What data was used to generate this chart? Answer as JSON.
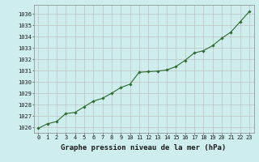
{
  "x": [
    0,
    1,
    2,
    3,
    4,
    5,
    6,
    7,
    8,
    9,
    10,
    11,
    12,
    13,
    14,
    15,
    16,
    17,
    18,
    19,
    20,
    21,
    22,
    23
  ],
  "y": [
    1025.9,
    1026.3,
    1026.5,
    1027.2,
    1027.3,
    1027.8,
    1028.3,
    1028.55,
    1029.0,
    1029.5,
    1029.8,
    1030.85,
    1030.9,
    1030.95,
    1031.05,
    1031.35,
    1031.9,
    1032.55,
    1032.75,
    1033.2,
    1033.85,
    1034.4,
    1035.3,
    1036.2
  ],
  "ylim": [
    1025.5,
    1036.8
  ],
  "yticks": [
    1026,
    1027,
    1028,
    1029,
    1030,
    1031,
    1032,
    1033,
    1034,
    1035,
    1036
  ],
  "xticks": [
    0,
    1,
    2,
    3,
    4,
    5,
    6,
    7,
    8,
    9,
    10,
    11,
    12,
    13,
    14,
    15,
    16,
    17,
    18,
    19,
    20,
    21,
    22,
    23
  ],
  "line_color": "#2d6a2d",
  "marker_color": "#2d6a2d",
  "bg_color": "#ceeeed",
  "grid_color": "#b8b8b8",
  "xlabel": "Graphe pression niveau de la mer (hPa)",
  "xlabel_color": "#1a1a1a",
  "tick_color": "#1a1a1a",
  "tick_fontsize": 5.0,
  "xlabel_fontsize": 6.5
}
